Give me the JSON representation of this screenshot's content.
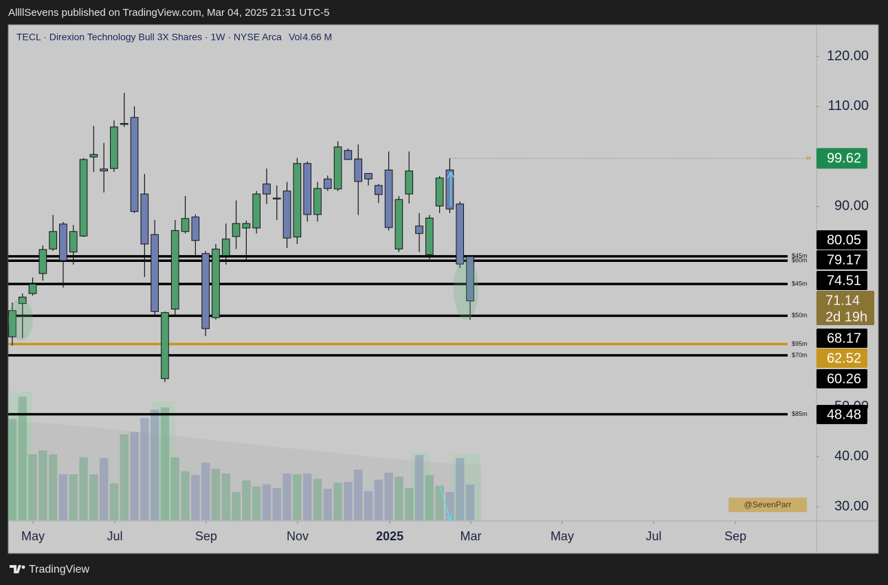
{
  "page": {
    "publisher": "AllllSevens published on TradingView.com, Mar 04, 2025 21:31 UTC-5",
    "brand": "TradingView",
    "watermark": "@SevenParr"
  },
  "chart_data": {
    "type": "candlestick",
    "title": "TECL · Direxion Technology Bull 3X Shares · 1W · NYSE Arca",
    "up_color": "#4f9e6e",
    "down_color": "#6f7fb1",
    "open": [
      63.96,
      70.6,
      72.6,
      76.6,
      81.5,
      86.5,
      80.9,
      84.1,
      99.9,
      97.5,
      97.6,
      106.4,
      107.8,
      92.5,
      84.4,
      55.6,
      69.5,
      85.0,
      87.9,
      80.6,
      67.8,
      80.2,
      84.0,
      85.7,
      85.7,
      94.5,
      91.7,
      93.1,
      83.9,
      98.6,
      88.4,
      95.5,
      93.5,
      101.2,
      99.5,
      96.6,
      94.2,
      97.3,
      81.5,
      92.5,
      86.1,
      80.4,
      90.1,
      97.3,
      90.5,
      80.0
    ],
    "high": [
      70.8,
      72.6,
      75.8,
      82.2,
      88.3,
      86.9,
      86.3,
      99.7,
      106.1,
      102.7,
      107.2,
      112.7,
      110.0,
      96.5,
      87.3,
      69.0,
      87.3,
      92.1,
      88.4,
      81.1,
      82.5,
      86.6,
      91.2,
      87.2,
      93.1,
      97.6,
      94.2,
      94.9,
      99.7,
      99.0,
      94.9,
      96.2,
      103.0,
      101.6,
      102.4,
      96.6,
      94.5,
      101.0,
      92.1,
      101.0,
      88.7,
      88.3,
      96.1,
      99.62,
      91.0,
      80.2
    ],
    "low": [
      62.2,
      63.7,
      72.2,
      75.2,
      81.1,
      73.8,
      78.4,
      83.9,
      96.9,
      92.8,
      96.9,
      105.9,
      88.7,
      75.9,
      68.1,
      54.9,
      68.4,
      84.6,
      80.2,
      64.1,
      67.4,
      78.4,
      81.5,
      79.3,
      84.6,
      90.5,
      87.3,
      81.7,
      82.5,
      87.0,
      87.0,
      93.1,
      93.1,
      99.3,
      88.3,
      94.2,
      90.7,
      85.2,
      80.9,
      90.6,
      80.9,
      79.5,
      88.7,
      88.7,
      77.7,
      67.3
    ],
    "close": [
      69.2,
      71.9,
      74.5,
      81.4,
      85.0,
      79.2,
      85.0,
      99.4,
      100.4,
      97.1,
      105.9,
      106.6,
      89.0,
      82.5,
      69.0,
      68.8,
      85.2,
      87.6,
      83.2,
      65.6,
      81.5,
      83.5,
      86.6,
      86.6,
      92.5,
      92.5,
      91.5,
      83.7,
      98.6,
      88.4,
      93.6,
      93.6,
      101.9,
      99.4,
      95.0,
      95.5,
      92.4,
      85.8,
      91.4,
      97.1,
      84.6,
      87.7,
      95.7,
      89.5,
      78.5,
      71.14
    ],
    "volume": {
      "name": "Vol",
      "values": [
        13.2,
        16.1,
        8.6,
        9.1,
        8.6,
        6.0,
        6.0,
        8.2,
        6.0,
        8.1,
        4.8,
        11.2,
        11.5,
        13.3,
        14.4,
        14.7,
        8.2,
        6.4,
        5.9,
        7.5,
        6.7,
        6.1,
        3.7,
        5.2,
        4.4,
        4.7,
        4.2,
        6.1,
        6.0,
        6.1,
        5.4,
        4.1,
        4.9,
        5.0,
        6.6,
        3.8,
        5.3,
        6.2,
        5.7,
        4.2,
        8.5,
        5.9,
        4.5,
        3.7,
        8.1,
        4.66
      ],
      "value_labels": [
        null,
        null,
        null,
        null,
        null,
        null,
        null,
        null,
        null,
        null,
        null,
        null,
        null,
        null,
        null,
        null,
        null,
        null,
        null,
        null,
        null,
        null,
        null,
        null,
        null,
        null,
        null,
        null,
        null,
        null,
        null,
        null,
        null,
        null,
        null,
        null,
        null,
        null,
        null,
        null,
        null,
        null,
        null,
        null,
        null,
        "4.66 M"
      ]
    },
    "ylim": [
      27.14,
      126.32
    ],
    "yticks": [
      {
        "value": 30,
        "label": "30.00"
      },
      {
        "value": 40,
        "label": "40.00"
      },
      {
        "value": 50,
        "label": "50.00"
      },
      {
        "value": 90,
        "label": "90.00"
      },
      {
        "value": 110,
        "label": "110.00"
      },
      {
        "value": 120,
        "label": "120.00"
      }
    ],
    "xlim": [
      -0.4,
      79.05
    ],
    "xticks": [
      {
        "value": 2.03,
        "label": "May"
      },
      {
        "value": 10.07,
        "label": "Jul"
      },
      {
        "value": 19.05,
        "label": "Sep"
      },
      {
        "value": 28.04,
        "label": "Nov"
      },
      {
        "value": 37.1,
        "label": "2025"
      },
      {
        "value": 45.07,
        "label": "Mar"
      },
      {
        "value": 54.05,
        "label": "May"
      },
      {
        "value": 63.04,
        "label": "Jul"
      },
      {
        "value": 71.08,
        "label": "Sep"
      }
    ],
    "levels": [
      {
        "value": 80.05,
        "label": "$45m",
        "color": "#000000"
      },
      {
        "value": 79.17,
        "label": "$60m",
        "color": "#000000"
      },
      {
        "value": 74.51,
        "label": "$45m",
        "color": "#000000"
      },
      {
        "value": 68.17,
        "label": "$50m",
        "color": "#000000"
      },
      {
        "value": 62.52,
        "label": "$95m",
        "color": "#c8961e"
      },
      {
        "value": 60.26,
        "label": "$70m",
        "color": "#000000"
      },
      {
        "value": 48.48,
        "label": "$85m",
        "color": "#000000"
      }
    ],
    "marker": {
      "value": 99.62,
      "label": "w",
      "color": "#1e8a4f"
    },
    "last_price": {
      "value": 71.14,
      "countdown": "2d 19h",
      "color": "#8a7434"
    }
  }
}
